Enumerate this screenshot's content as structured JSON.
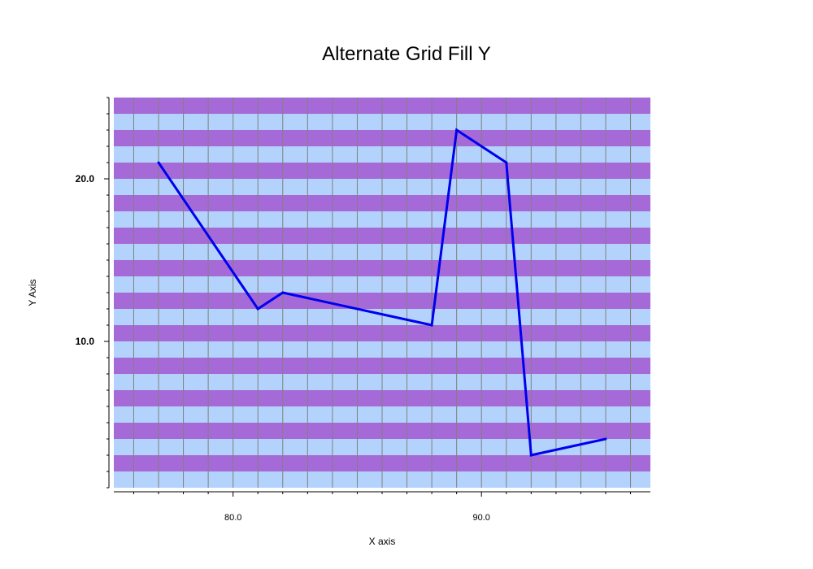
{
  "chart_data": {
    "type": "line",
    "title": "Alternate Grid Fill Y",
    "xlabel": "X axis",
    "ylabel": "Y Axis",
    "xlim": [
      75.2,
      96.8
    ],
    "ylim": [
      1,
      25
    ],
    "x_ticks": [
      80.0,
      90.0
    ],
    "x_tick_labels": [
      "80.0",
      "90.0"
    ],
    "y_ticks": [
      10.0,
      20.0
    ],
    "y_tick_labels": [
      "10.0",
      "20.0"
    ],
    "x_grid_step": 1,
    "y_band_step": 1,
    "grid": true,
    "legend": "none",
    "colors": {
      "band_a": "#a66ad8",
      "band_b": "#b3d2fc",
      "grid": "#808080",
      "line": "#0000ee",
      "axis": "#000000"
    },
    "series": [
      {
        "x": [
          77,
          81,
          82,
          88,
          89,
          91,
          92,
          95
        ],
        "y": [
          21,
          12,
          13,
          11,
          23,
          21,
          3,
          4
        ]
      }
    ]
  }
}
